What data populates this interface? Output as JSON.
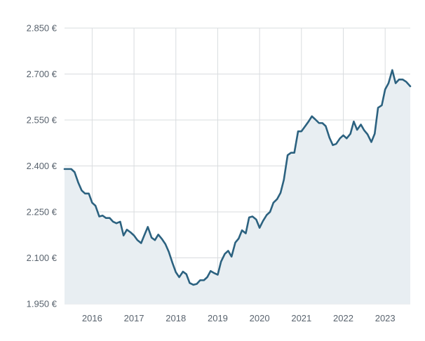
{
  "chart_data": {
    "type": "area",
    "title": "",
    "xlabel": "",
    "ylabel": "",
    "ylim": [
      1950,
      2850
    ],
    "y_ticks": [
      1950,
      2100,
      2250,
      2400,
      2550,
      2700,
      2850
    ],
    "y_tick_labels": [
      "1.950 €",
      "2.100 €",
      "2.250 €",
      "2.400 €",
      "2.550 €",
      "2.700 €",
      "2.850 €"
    ],
    "xlim": [
      2015.34,
      2023.6
    ],
    "x_ticks": [
      2016,
      2017,
      2018,
      2019,
      2020,
      2021,
      2022,
      2023
    ],
    "x_tick_labels": [
      "2016",
      "2017",
      "2018",
      "2019",
      "2020",
      "2021",
      "2022",
      "2023"
    ],
    "grid": true,
    "legend": "none",
    "colors": {
      "line": "#2c6280",
      "fill": "#e8eef2",
      "grid": "#d9dcdf",
      "text": "#59636e"
    },
    "series": [
      {
        "x": [
          2015.34,
          2015.42,
          2015.5,
          2015.58,
          2015.67,
          2015.75,
          2015.83,
          2015.92,
          2016.0,
          2016.08,
          2016.17,
          2016.25,
          2016.33,
          2016.42,
          2016.5,
          2016.58,
          2016.67,
          2016.75,
          2016.83,
          2016.92,
          2017.0,
          2017.08,
          2017.17,
          2017.25,
          2017.33,
          2017.42,
          2017.5,
          2017.58,
          2017.67,
          2017.75,
          2017.83,
          2017.92,
          2018.0,
          2018.08,
          2018.17,
          2018.25,
          2018.33,
          2018.42,
          2018.5,
          2018.58,
          2018.67,
          2018.75,
          2018.83,
          2018.92,
          2019.0,
          2019.08,
          2019.17,
          2019.25,
          2019.33,
          2019.42,
          2019.5,
          2019.58,
          2019.67,
          2019.75,
          2019.83,
          2019.92,
          2020.0,
          2020.08,
          2020.17,
          2020.25,
          2020.33,
          2020.42,
          2020.5,
          2020.58,
          2020.67,
          2020.75,
          2020.83,
          2020.92,
          2021.0,
          2021.08,
          2021.17,
          2021.25,
          2021.33,
          2021.42,
          2021.5,
          2021.58,
          2021.67,
          2021.75,
          2021.83,
          2021.92,
          2022.0,
          2022.08,
          2022.17,
          2022.25,
          2022.33,
          2022.42,
          2022.5,
          2022.58,
          2022.67,
          2022.75,
          2022.83,
          2022.92,
          2023.0,
          2023.08,
          2023.17,
          2023.25,
          2023.33,
          2023.42,
          2023.5,
          2023.6
        ],
        "values": [
          2390,
          2390,
          2390,
          2380,
          2345,
          2320,
          2310,
          2310,
          2280,
          2270,
          2235,
          2238,
          2230,
          2230,
          2218,
          2213,
          2218,
          2173,
          2192,
          2183,
          2173,
          2158,
          2148,
          2175,
          2201,
          2166,
          2158,
          2176,
          2161,
          2145,
          2120,
          2083,
          2053,
          2037,
          2055,
          2047,
          2018,
          2012,
          2015,
          2027,
          2027,
          2037,
          2057,
          2050,
          2045,
          2088,
          2113,
          2123,
          2104,
          2150,
          2163,
          2190,
          2180,
          2232,
          2235,
          2225,
          2198,
          2220,
          2240,
          2250,
          2280,
          2292,
          2312,
          2355,
          2435,
          2443,
          2443,
          2513,
          2513,
          2528,
          2545,
          2562,
          2552,
          2540,
          2540,
          2530,
          2492,
          2468,
          2472,
          2490,
          2500,
          2490,
          2505,
          2545,
          2518,
          2535,
          2516,
          2503,
          2478,
          2505,
          2590,
          2598,
          2650,
          2670,
          2713,
          2670,
          2682,
          2682,
          2675,
          2660
        ]
      }
    ]
  }
}
